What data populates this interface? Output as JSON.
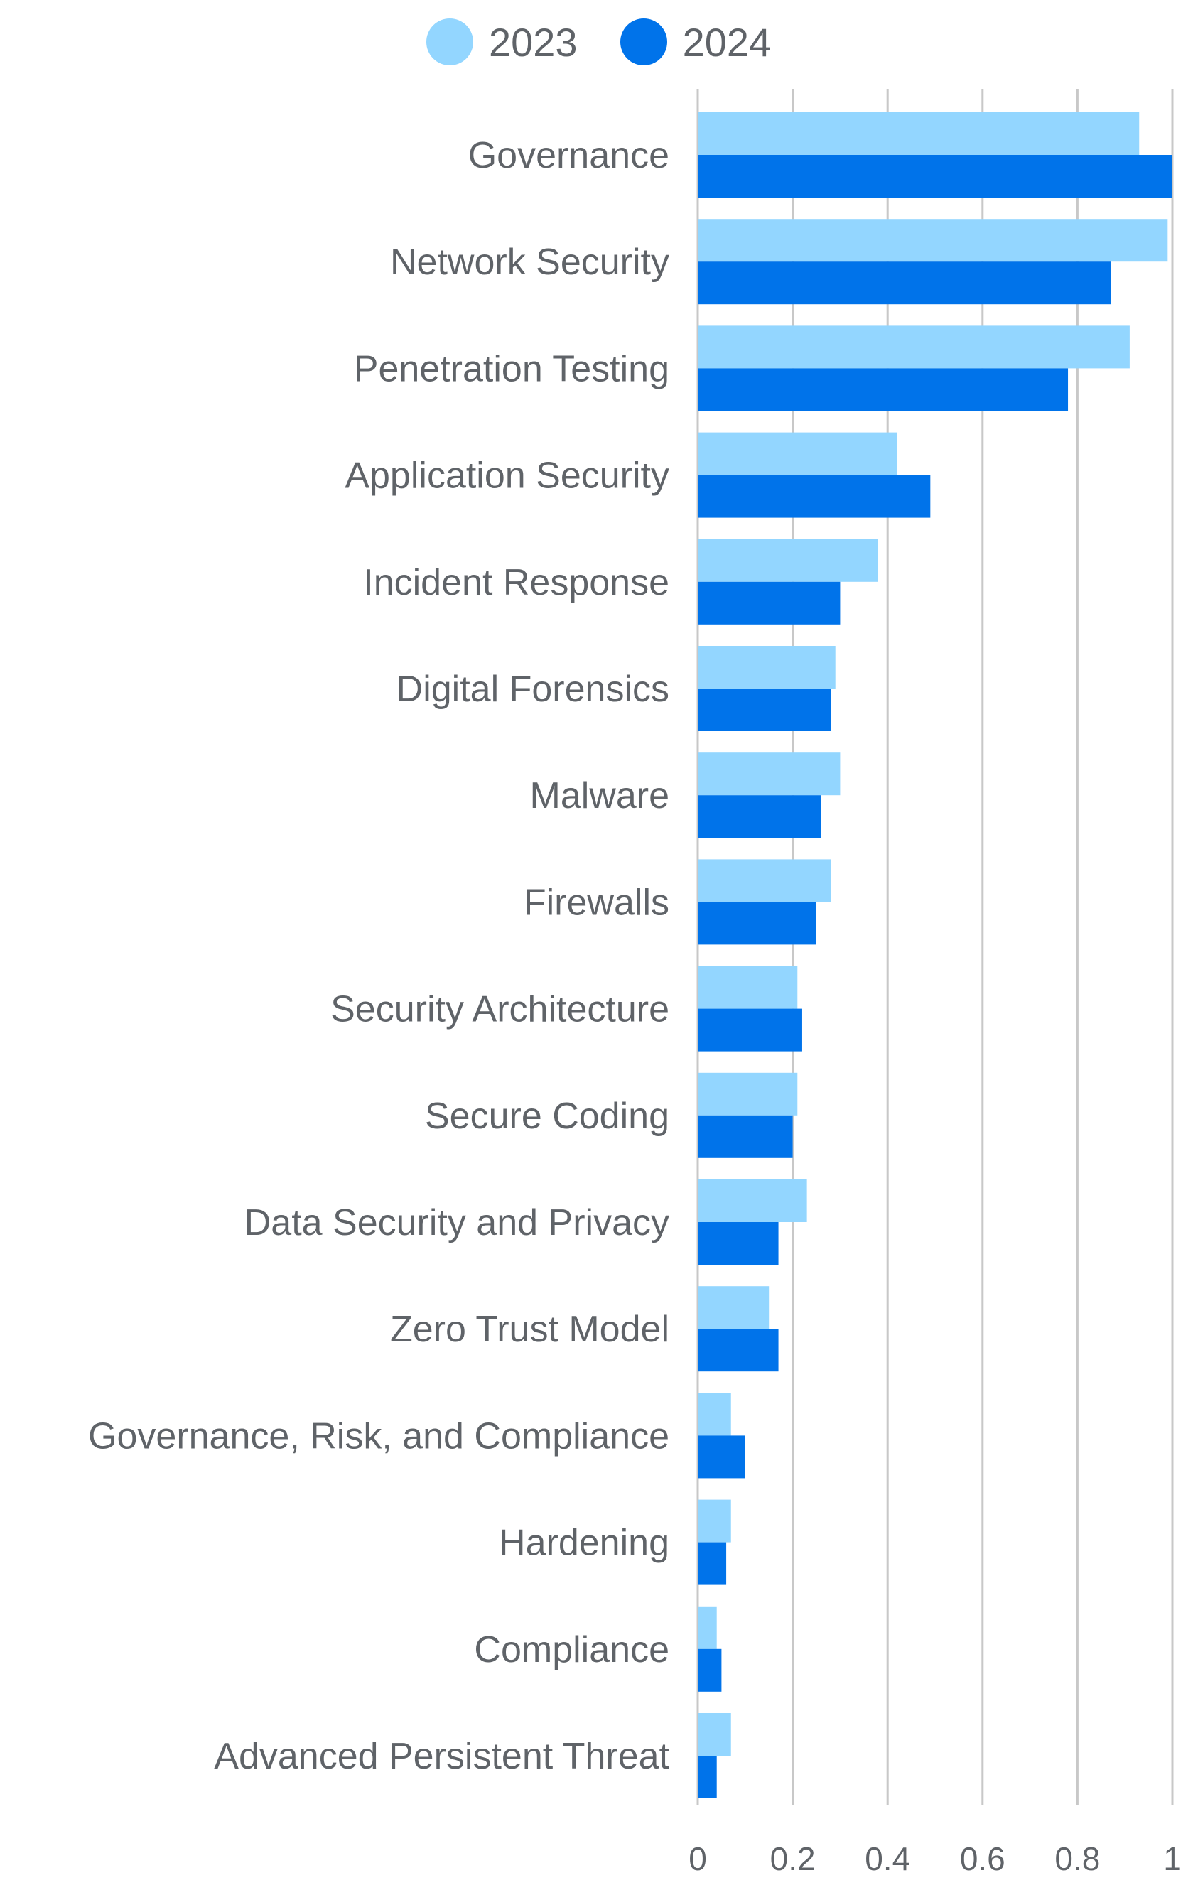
{
  "colors": {
    "series_2023": "#93d6ff",
    "series_2024": "#0073ea",
    "gridline": "#c8c8c8",
    "text": "#5f6368"
  },
  "legend": {
    "items": [
      {
        "label": "2023",
        "color": "#93d6ff"
      },
      {
        "label": "2024",
        "color": "#0073ea"
      }
    ]
  },
  "chart_data": {
    "type": "bar",
    "orientation": "horizontal",
    "categories": [
      "Governance",
      "Network Security",
      "Penetration Testing",
      "Application Security",
      "Incident Response",
      "Digital Forensics",
      "Malware",
      "Firewalls",
      "Security Architecture",
      "Secure Coding",
      "Data Security and Privacy",
      "Zero Trust Model",
      "Governance, Risk, and Compliance",
      "Hardening",
      "Compliance",
      "Advanced Persistent Threat"
    ],
    "series": [
      {
        "name": "2023",
        "values": [
          0.93,
          0.99,
          0.91,
          0.42,
          0.38,
          0.29,
          0.3,
          0.28,
          0.21,
          0.21,
          0.23,
          0.15,
          0.07,
          0.07,
          0.04,
          0.07
        ]
      },
      {
        "name": "2024",
        "values": [
          1.0,
          0.87,
          0.78,
          0.49,
          0.3,
          0.28,
          0.26,
          0.25,
          0.22,
          0.2,
          0.17,
          0.17,
          0.1,
          0.06,
          0.05,
          0.04
        ]
      }
    ],
    "xlim": [
      0,
      1
    ],
    "x_ticks": [
      "0",
      "0.2",
      "0.4",
      "0.6",
      "0.8",
      "1"
    ],
    "grid": true,
    "legend_position": "top-center"
  }
}
